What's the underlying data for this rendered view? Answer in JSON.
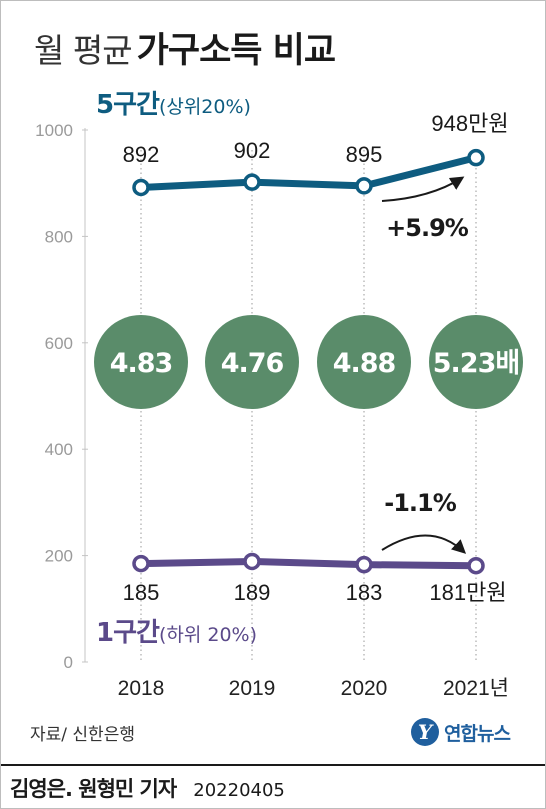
{
  "title": {
    "prefix": "월 평균",
    "main": "가구소득 비교"
  },
  "source": "자료/ 신한은행",
  "logo": {
    "mark": "Y",
    "text": "연합뉴스"
  },
  "byline": {
    "reporter": "김영은. 원형민 기자",
    "date": "20220405"
  },
  "colors": {
    "top_series": "#0e5c80",
    "bottom_series": "#5b4a8a",
    "ratio_circle": "#5a8c6a",
    "axis_text": "#9a9a9a",
    "guide": "#9a9a9a"
  },
  "chart_data": {
    "type": "line",
    "x": [
      "2018",
      "2019",
      "2020",
      "2021"
    ],
    "x_tick_labels": [
      "2018",
      "2019",
      "2020",
      "2021년"
    ],
    "ylim": [
      0,
      1000
    ],
    "y_ticks": [
      "0",
      "200",
      "400",
      "600",
      "800",
      "1000"
    ],
    "xlabel": "",
    "ylabel": "",
    "grid": false,
    "series": [
      {
        "name": "5구간",
        "name_note": "(상위20%)",
        "values": [
          892,
          902,
          895,
          948
        ],
        "value_labels": [
          "892",
          "902",
          "895",
          "948만원"
        ],
        "change_label": "+5.9%"
      },
      {
        "name": "1구간",
        "name_note": "(하위 20%)",
        "values": [
          185,
          189,
          183,
          181
        ],
        "value_labels": [
          "185",
          "189",
          "183",
          "181만원"
        ],
        "change_label": "-1.1%"
      }
    ],
    "ratios": [
      4.83,
      4.76,
      4.88,
      5.23
    ],
    "ratio_labels": [
      "4.83",
      "4.76",
      "4.88",
      "5.23배"
    ]
  }
}
